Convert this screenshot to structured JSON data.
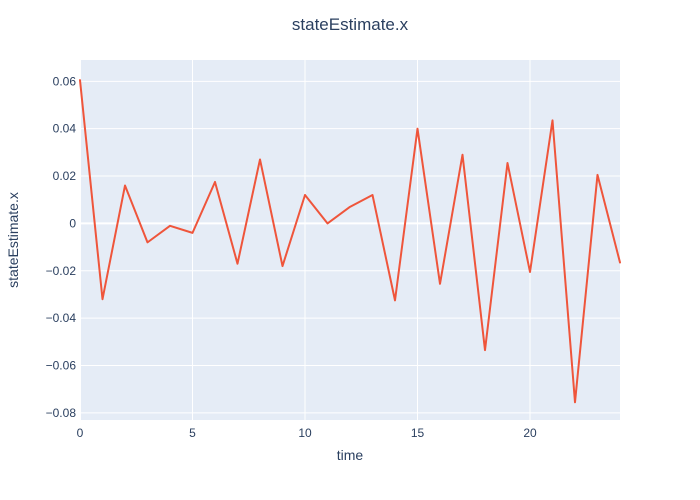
{
  "chart_data": {
    "type": "line",
    "title": "stateEstimate.x",
    "xlabel": "time",
    "ylabel": "stateEstimate.x",
    "xlim": [
      0,
      24
    ],
    "ylim": [
      -0.083,
      0.069
    ],
    "xticks": [
      0,
      5,
      10,
      15,
      20
    ],
    "xtick_labels": [
      "0",
      "5",
      "10",
      "15",
      "20"
    ],
    "yticks": [
      -0.08,
      -0.06,
      -0.04,
      -0.02,
      0,
      0.02,
      0.04,
      0.06
    ],
    "ytick_labels": [
      "−0.08",
      "−0.06",
      "−0.04",
      "−0.02",
      "0",
      "0.02",
      "0.04",
      "0.06"
    ],
    "grid": true,
    "legend": "none",
    "colors": {
      "plot_background": "#e5ecf6",
      "series": "#ef553b",
      "text": "#2a3f5f"
    },
    "series": [
      {
        "x": [
          0,
          1,
          2,
          3,
          4,
          5,
          6,
          7,
          8,
          9,
          10,
          11,
          12,
          13,
          14,
          15,
          16,
          17,
          18,
          19,
          20,
          21,
          22,
          23,
          24
        ],
        "values": [
          0.0605,
          -0.032,
          0.016,
          -0.008,
          -0.001,
          -0.004,
          0.0175,
          -0.017,
          0.027,
          -0.018,
          0.012,
          0.0,
          0.007,
          0.012,
          -0.0325,
          0.04,
          -0.0255,
          0.029,
          -0.0535,
          0.0255,
          -0.0205,
          0.0435,
          -0.0755,
          0.0205,
          -0.0165
        ]
      }
    ]
  }
}
